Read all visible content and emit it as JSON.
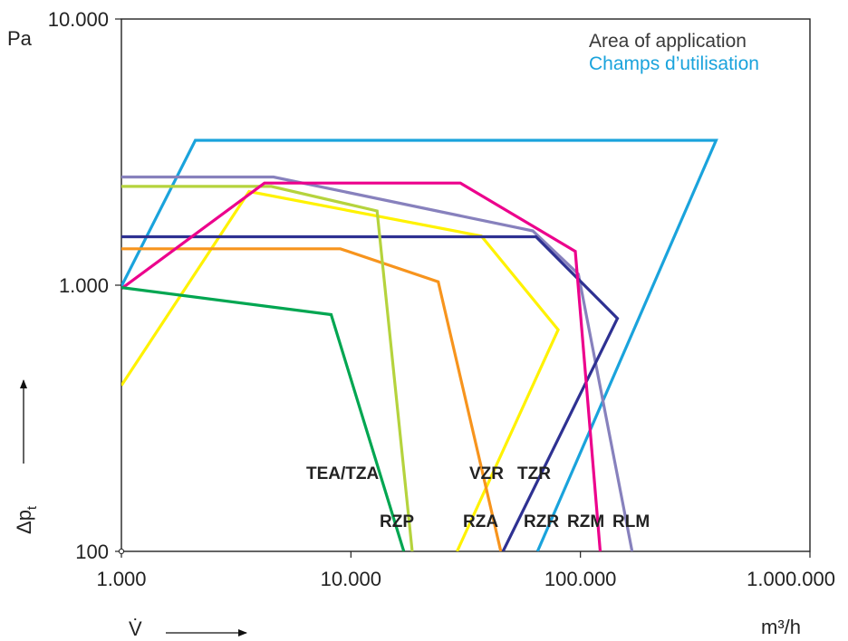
{
  "chart_data": {
    "type": "line",
    "xscale": "log",
    "yscale": "log",
    "xlim": [
      1000,
      1000000
    ],
    "ylim": [
      100,
      10000
    ],
    "grid": false,
    "legend": {
      "placement": "top-right",
      "lines": [
        {
          "text": "Area of application",
          "color": "#3a3a3a"
        },
        {
          "text": "Champs d’utilisation",
          "color": "#1aa3dc"
        }
      ]
    },
    "xticks": [
      {
        "value": 1000,
        "label": "1.000"
      },
      {
        "value": 10000,
        "label": "10.000"
      },
      {
        "value": 100000,
        "label": "100.000"
      },
      {
        "value": 1000000,
        "label": "1.000.000"
      }
    ],
    "yticks": [
      {
        "value": 100,
        "label": "100"
      },
      {
        "value": 1000,
        "label": "1.000"
      },
      {
        "value": 10000,
        "label": "10.000"
      }
    ],
    "ylabel": "Δpt",
    "ylabel_main": "Δp",
    "ylabel_sub": "t",
    "xlabel": "V̇",
    "xunit": "m³/h",
    "yunit": "Pa",
    "series": [
      {
        "name": "TEA/TZA",
        "color": "#00a651",
        "points": [
          [
            1000,
            980
          ],
          [
            8200,
            775
          ],
          [
            17000,
            100
          ]
        ]
      },
      {
        "name": "RZP",
        "color": "#b5d33d",
        "points": [
          [
            1000,
            2350
          ],
          [
            4500,
            2350
          ],
          [
            13000,
            1900
          ],
          [
            18500,
            100
          ]
        ]
      },
      {
        "name": "RZA",
        "color": "#f7941d",
        "points": [
          [
            1000,
            1370
          ],
          [
            9000,
            1370
          ],
          [
            24000,
            1030
          ],
          [
            45000,
            100
          ]
        ]
      },
      {
        "name": "VZR",
        "color": "#fff200",
        "points": [
          [
            1000,
            420
          ],
          [
            3600,
            2250
          ],
          [
            37000,
            1530
          ],
          [
            80000,
            680
          ],
          [
            29000,
            100
          ]
        ]
      },
      {
        "name": "TZR",
        "color": "#2e3192",
        "points": [
          [
            1000,
            1520
          ],
          [
            64000,
            1520
          ],
          [
            145000,
            750
          ],
          [
            46000,
            100
          ]
        ]
      },
      {
        "name": "RZR",
        "color": "#1aa3dc",
        "points": [
          [
            1000,
            990
          ],
          [
            2100,
            3500
          ],
          [
            390000,
            3500
          ],
          [
            65000,
            100
          ]
        ]
      },
      {
        "name": "RZM",
        "color": "#ec008c",
        "points": [
          [
            1000,
            970
          ],
          [
            4200,
            2420
          ],
          [
            30000,
            2420
          ],
          [
            95000,
            1340
          ],
          [
            122000,
            100
          ]
        ]
      },
      {
        "name": "RLM",
        "color": "#8781bd",
        "points": [
          [
            1000,
            2550
          ],
          [
            4600,
            2550
          ],
          [
            62000,
            1600
          ],
          [
            98000,
            1100
          ],
          [
            168000,
            100
          ]
        ]
      }
    ]
  }
}
